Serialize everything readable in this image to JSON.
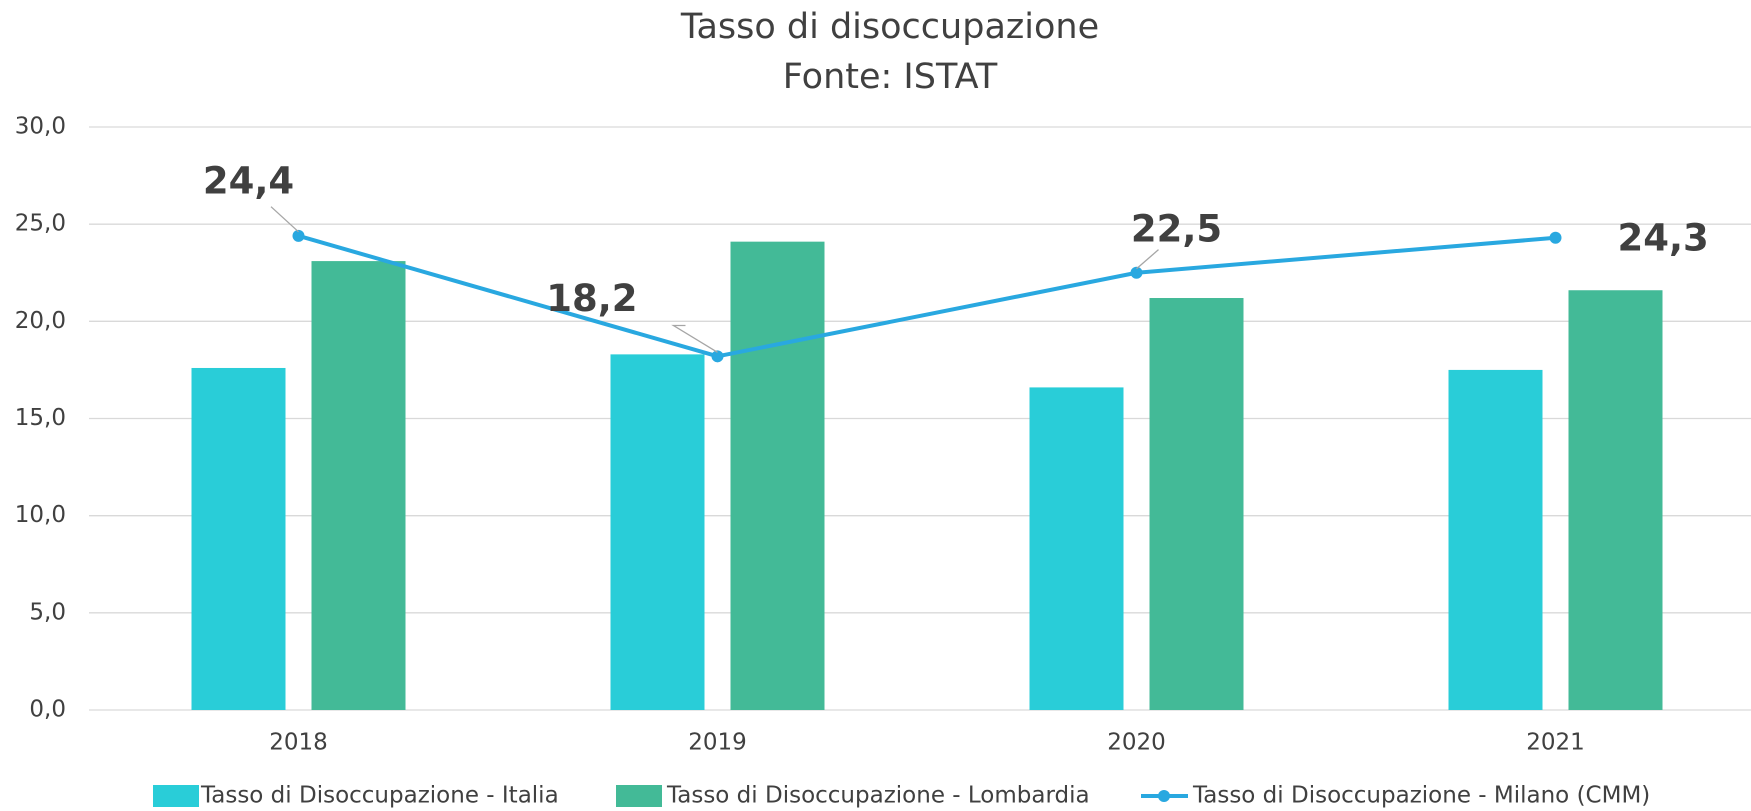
{
  "chart_data": {
    "type": "bar",
    "title": "Tasso di disoccupazione",
    "subtitle": "Fonte: ISTAT",
    "categories": [
      "2018",
      "2019",
      "2020",
      "2021"
    ],
    "series": [
      {
        "name": "Tasso di Disoccupazione - Italia",
        "type": "bar",
        "color": "#29cdd8",
        "values": [
          17.6,
          18.3,
          16.6,
          17.5
        ]
      },
      {
        "name": "Tasso di Disoccupazione - Lombardia",
        "type": "bar",
        "color": "#43ba97",
        "values": [
          23.1,
          24.1,
          21.2,
          21.6
        ]
      },
      {
        "name": "Tasso di Disoccupazione - Milano (CMM)",
        "type": "line",
        "color": "#29a8e0",
        "values": [
          24.4,
          18.2,
          22.5,
          24.3
        ],
        "value_labels": [
          "24,4",
          "18,2",
          "22,5",
          "24,3"
        ]
      }
    ],
    "ylim": [
      0,
      30
    ],
    "yticks": [
      {
        "value": 0,
        "label": "0,0"
      },
      {
        "value": 5,
        "label": "5,0"
      },
      {
        "value": 10,
        "label": "10,0"
      },
      {
        "value": 15,
        "label": "15,0"
      },
      {
        "value": 20,
        "label": "20,0"
      },
      {
        "value": 25,
        "label": "25,0"
      },
      {
        "value": 30,
        "label": "30,0"
      }
    ],
    "grid": true,
    "legend": "bottom"
  }
}
